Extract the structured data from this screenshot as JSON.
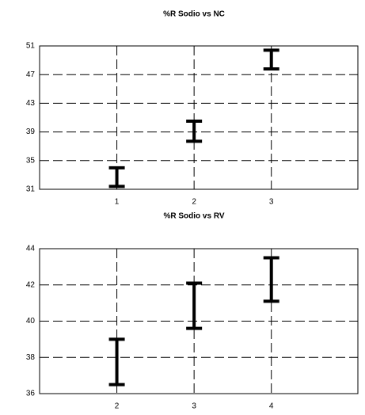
{
  "chart_data": [
    {
      "type": "errorbar",
      "title": "%R Sodio vs NC",
      "x": [
        1,
        2,
        3
      ],
      "low": [
        31.4,
        37.7,
        47.8
      ],
      "high": [
        34.0,
        40.5,
        50.4
      ],
      "xlim": [
        0,
        4.12
      ],
      "xticks": [
        1,
        2,
        3
      ],
      "ylim": [
        31,
        51
      ],
      "yticks": [
        31,
        35,
        39,
        43,
        47,
        51
      ],
      "grid": true,
      "color": "#000000"
    },
    {
      "type": "errorbar",
      "title": "%R Sodio vs RV",
      "x": [
        2,
        3,
        4
      ],
      "low": [
        36.5,
        39.6,
        41.1
      ],
      "high": [
        39.0,
        42.1,
        43.5
      ],
      "xlim": [
        1,
        5.12
      ],
      "xticks": [
        2,
        3,
        4
      ],
      "ylim": [
        36,
        44
      ],
      "yticks": [
        36,
        38,
        40,
        42,
        44
      ],
      "grid": true,
      "color": "#000000"
    }
  ]
}
